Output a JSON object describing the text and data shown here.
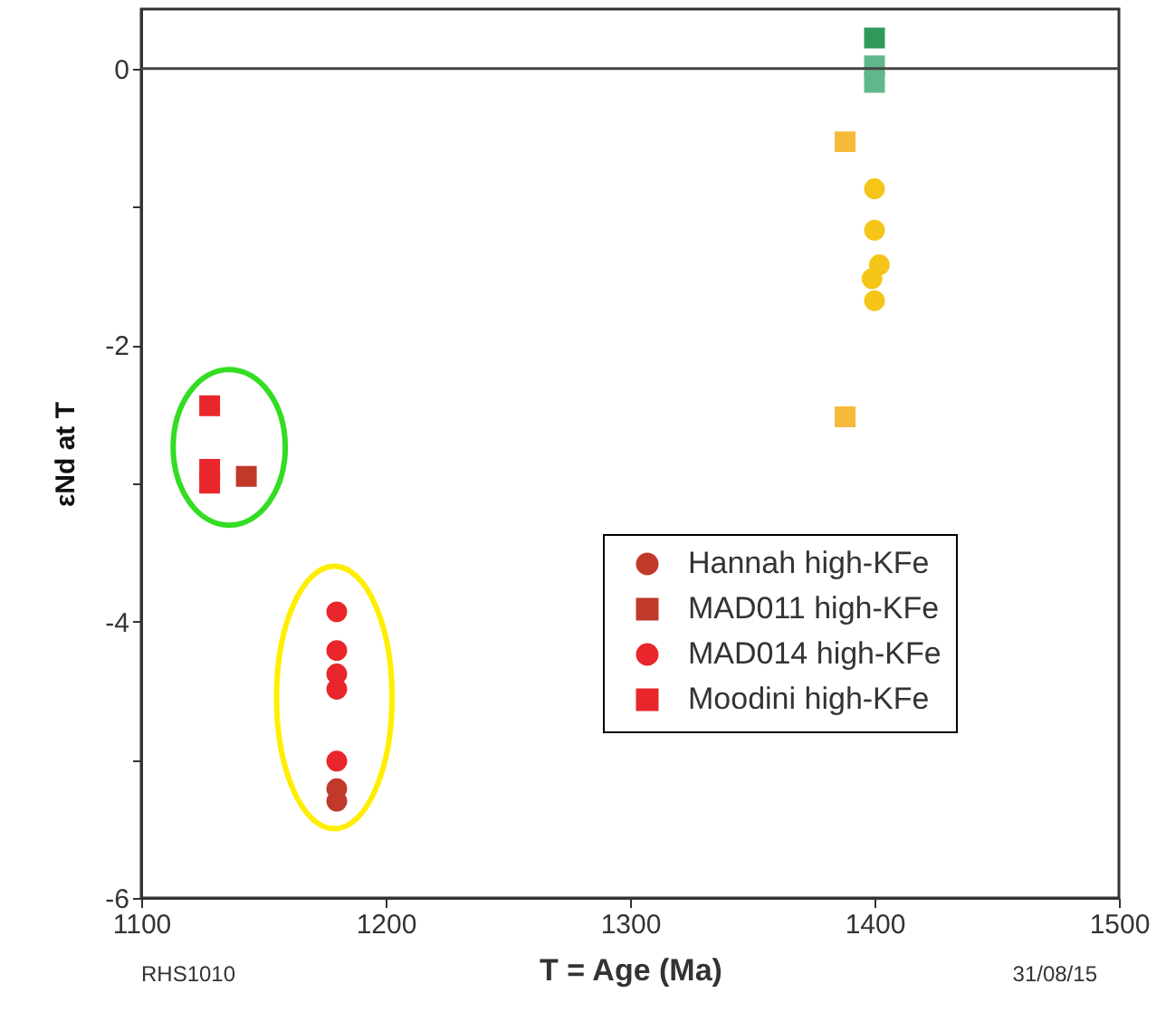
{
  "chart_data": {
    "type": "scatter",
    "xlabel": "T =  Age (Ma)",
    "ylabel": "εNd at T",
    "xlim": [
      1100,
      1500
    ],
    "xticks": [
      1100,
      1200,
      1300,
      1400,
      1500
    ],
    "ylim": [
      -6,
      0.43
    ],
    "yticks": [
      -6,
      {
        "value": -5,
        "label": null
      },
      -4,
      {
        "value": -3,
        "label": null
      },
      -2,
      {
        "value": -1,
        "label": null
      },
      0
    ],
    "grid": false,
    "legend": "right",
    "ref_lines": [
      {
        "axis": "y",
        "value": 0,
        "label": null,
        "color": "#444444"
      }
    ],
    "annotations": [
      "RHS1010",
      "31/08/15"
    ],
    "series": [
      {
        "name": "Hannah high-KFe",
        "color": "#c0392b",
        "marker": "circle",
        "x": [
          1180,
          1180
        ],
        "values": [
          -5.21,
          -5.3
        ]
      },
      {
        "name": "MAD011 high-KFe",
        "color": "#c0392b",
        "marker": "square",
        "x": [
          1143
        ],
        "values": [
          -2.95
        ]
      },
      {
        "name": "MAD014 high-KFe",
        "color": "#e8262b",
        "marker": "circle",
        "x": [
          1180,
          1180,
          1180,
          1180,
          1180
        ],
        "values": [
          -3.93,
          -4.21,
          -4.38,
          -4.49,
          -5.01
        ]
      },
      {
        "name": "Moodini high-KFe",
        "color": "#e8262b",
        "marker": "square",
        "x": [
          1128,
          1128,
          1128
        ],
        "values": [
          -2.44,
          -2.9,
          -3.0
        ]
      },
      {
        "color": "#2e9a5a",
        "marker": "square",
        "x": [
          1400
        ],
        "values": [
          0.22
        ]
      },
      {
        "color": "#5fb88a",
        "marker": "square",
        "x": [
          1400,
          1400
        ],
        "values": [
          0.02,
          -0.1
        ]
      },
      {
        "color": "#f6b93b",
        "marker": "square",
        "x": [
          1388,
          1388
        ],
        "values": [
          -0.53,
          -2.52
        ]
      },
      {
        "color": "#f5c518",
        "marker": "circle",
        "x": [
          1400,
          1400,
          1400,
          1402,
          1399
        ],
        "values": [
          -0.87,
          -1.17,
          -1.68,
          -1.42,
          -1.52
        ]
      }
    ]
  }
}
